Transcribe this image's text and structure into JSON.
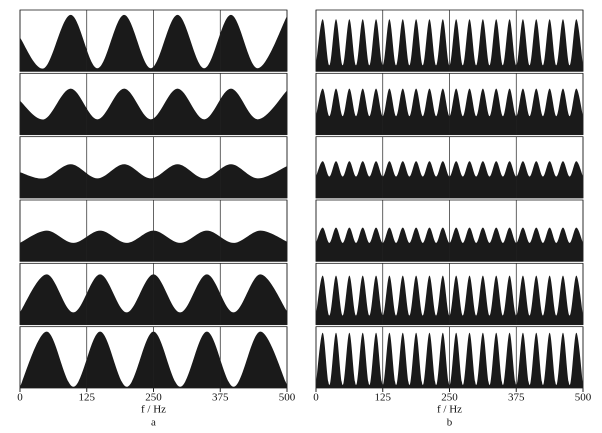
{
  "chart_data": [
    {
      "type": "area",
      "subtitle": "a",
      "xlabel": "f / Hz",
      "color": "#1a1a1a",
      "xlim": [
        0,
        500
      ],
      "xticks": [
        0,
        125,
        250,
        375,
        500
      ],
      "ylim": [
        0,
        1
      ],
      "grid": true,
      "series": [
        {
          "x": [
            0,
            45,
            95,
            145,
            195,
            245,
            295,
            345,
            395,
            445,
            500
          ],
          "values": [
            0.55,
            0.05,
            0.92,
            0.05,
            0.92,
            0.05,
            0.92,
            0.05,
            0.92,
            0.05,
            0.9
          ]
        },
        {
          "x": [
            0,
            45,
            95,
            145,
            195,
            245,
            295,
            345,
            395,
            445,
            500
          ],
          "values": [
            0.55,
            0.25,
            0.75,
            0.25,
            0.75,
            0.25,
            0.75,
            0.25,
            0.75,
            0.25,
            0.72
          ]
        },
        {
          "x": [
            0,
            45,
            95,
            145,
            195,
            245,
            295,
            345,
            395,
            445,
            500
          ],
          "values": [
            0.42,
            0.32,
            0.55,
            0.32,
            0.55,
            0.32,
            0.55,
            0.32,
            0.55,
            0.32,
            0.52
          ]
        },
        {
          "x": [
            0,
            50,
            100,
            150,
            200,
            250,
            300,
            350,
            400,
            450,
            500
          ],
          "values": [
            0.3,
            0.5,
            0.3,
            0.5,
            0.3,
            0.5,
            0.3,
            0.5,
            0.3,
            0.5,
            0.32
          ]
        },
        {
          "x": [
            0,
            50,
            100,
            150,
            200,
            250,
            300,
            350,
            400,
            450,
            500
          ],
          "values": [
            0.2,
            0.82,
            0.2,
            0.82,
            0.2,
            0.82,
            0.2,
            0.82,
            0.2,
            0.82,
            0.22
          ]
        },
        {
          "x": [
            0,
            50,
            100,
            150,
            200,
            250,
            300,
            350,
            400,
            450,
            500
          ],
          "values": [
            0.02,
            0.92,
            0.02,
            0.92,
            0.02,
            0.92,
            0.02,
            0.92,
            0.02,
            0.92,
            0.05
          ]
        }
      ]
    },
    {
      "type": "area",
      "subtitle": "b",
      "xlabel": "f / Hz",
      "color": "#1a1a1a",
      "xlim": [
        0,
        500
      ],
      "xticks": [
        0,
        125,
        250,
        375,
        500
      ],
      "ylim": [
        0,
        1
      ],
      "grid": true,
      "series": [
        {
          "x": [
            0,
            12.5,
            25,
            37.5,
            50,
            62.5,
            75,
            87.5,
            100,
            112.5,
            125,
            137.5,
            150,
            162.5,
            175,
            187.5,
            200,
            212.5,
            225,
            237.5,
            250,
            262.5,
            275,
            287.5,
            300,
            312.5,
            325,
            337.5,
            350,
            362.5,
            375,
            387.5,
            400,
            412.5,
            425,
            437.5,
            450,
            462.5,
            475,
            487.5,
            500
          ],
          "values": [
            0.1,
            0.85,
            0.1,
            0.85,
            0.1,
            0.85,
            0.1,
            0.85,
            0.1,
            0.85,
            0.1,
            0.85,
            0.1,
            0.85,
            0.1,
            0.85,
            0.1,
            0.85,
            0.1,
            0.85,
            0.1,
            0.85,
            0.1,
            0.85,
            0.1,
            0.85,
            0.1,
            0.85,
            0.1,
            0.85,
            0.1,
            0.85,
            0.1,
            0.85,
            0.1,
            0.85,
            0.1,
            0.85,
            0.1,
            0.85,
            0.1
          ]
        },
        {
          "x": [
            0,
            12.5,
            25,
            37.5,
            50,
            62.5,
            75,
            87.5,
            100,
            112.5,
            125,
            137.5,
            150,
            162.5,
            175,
            187.5,
            200,
            212.5,
            225,
            237.5,
            250,
            262.5,
            275,
            287.5,
            300,
            312.5,
            325,
            337.5,
            350,
            362.5,
            375,
            387.5,
            400,
            412.5,
            425,
            437.5,
            450,
            462.5,
            475,
            487.5,
            500
          ],
          "values": [
            0.3,
            0.75,
            0.3,
            0.75,
            0.3,
            0.75,
            0.3,
            0.75,
            0.3,
            0.75,
            0.3,
            0.75,
            0.3,
            0.75,
            0.3,
            0.75,
            0.3,
            0.75,
            0.3,
            0.75,
            0.3,
            0.75,
            0.3,
            0.75,
            0.3,
            0.75,
            0.3,
            0.75,
            0.3,
            0.75,
            0.3,
            0.75,
            0.3,
            0.75,
            0.3,
            0.75,
            0.3,
            0.75,
            0.3,
            0.75,
            0.3
          ]
        },
        {
          "x": [
            0,
            12.5,
            25,
            37.5,
            50,
            62.5,
            75,
            87.5,
            100,
            112.5,
            125,
            137.5,
            150,
            162.5,
            175,
            187.5,
            200,
            212.5,
            225,
            237.5,
            250,
            262.5,
            275,
            287.5,
            300,
            312.5,
            325,
            337.5,
            350,
            362.5,
            375,
            387.5,
            400,
            412.5,
            425,
            437.5,
            450,
            462.5,
            475,
            487.5,
            500
          ],
          "values": [
            0.35,
            0.6,
            0.35,
            0.6,
            0.35,
            0.6,
            0.35,
            0.6,
            0.35,
            0.6,
            0.35,
            0.6,
            0.35,
            0.6,
            0.35,
            0.6,
            0.35,
            0.6,
            0.35,
            0.6,
            0.35,
            0.6,
            0.35,
            0.6,
            0.35,
            0.6,
            0.35,
            0.6,
            0.35,
            0.6,
            0.35,
            0.6,
            0.35,
            0.6,
            0.35,
            0.6,
            0.35,
            0.6,
            0.35,
            0.6,
            0.35
          ]
        },
        {
          "x": [
            0,
            12.5,
            25,
            37.5,
            50,
            62.5,
            75,
            87.5,
            100,
            112.5,
            125,
            137.5,
            150,
            162.5,
            175,
            187.5,
            200,
            212.5,
            225,
            237.5,
            250,
            262.5,
            275,
            287.5,
            300,
            312.5,
            325,
            337.5,
            350,
            362.5,
            375,
            387.5,
            400,
            412.5,
            425,
            437.5,
            450,
            462.5,
            475,
            487.5,
            500
          ],
          "values": [
            0.3,
            0.55,
            0.3,
            0.55,
            0.3,
            0.55,
            0.3,
            0.55,
            0.3,
            0.55,
            0.3,
            0.55,
            0.3,
            0.55,
            0.3,
            0.55,
            0.3,
            0.55,
            0.3,
            0.55,
            0.3,
            0.55,
            0.3,
            0.55,
            0.3,
            0.55,
            0.3,
            0.55,
            0.3,
            0.55,
            0.3,
            0.55,
            0.3,
            0.55,
            0.3,
            0.55,
            0.3,
            0.55,
            0.3,
            0.55,
            0.3
          ]
        },
        {
          "x": [
            0,
            12.5,
            25,
            37.5,
            50,
            62.5,
            75,
            87.5,
            100,
            112.5,
            125,
            137.5,
            150,
            162.5,
            175,
            187.5,
            200,
            212.5,
            225,
            237.5,
            250,
            262.5,
            275,
            287.5,
            300,
            312.5,
            325,
            337.5,
            350,
            362.5,
            375,
            387.5,
            400,
            412.5,
            425,
            437.5,
            450,
            462.5,
            475,
            487.5,
            500
          ],
          "values": [
            0.15,
            0.8,
            0.15,
            0.8,
            0.15,
            0.8,
            0.15,
            0.8,
            0.15,
            0.8,
            0.15,
            0.8,
            0.15,
            0.8,
            0.15,
            0.8,
            0.15,
            0.8,
            0.15,
            0.8,
            0.15,
            0.8,
            0.15,
            0.8,
            0.15,
            0.8,
            0.15,
            0.8,
            0.15,
            0.8,
            0.15,
            0.8,
            0.15,
            0.8,
            0.15,
            0.8,
            0.15,
            0.8,
            0.15,
            0.8,
            0.15
          ]
        },
        {
          "x": [
            0,
            12.5,
            25,
            37.5,
            50,
            62.5,
            75,
            87.5,
            100,
            112.5,
            125,
            137.5,
            150,
            162.5,
            175,
            187.5,
            200,
            212.5,
            225,
            237.5,
            250,
            262.5,
            275,
            287.5,
            300,
            312.5,
            325,
            337.5,
            350,
            362.5,
            375,
            387.5,
            400,
            412.5,
            425,
            437.5,
            450,
            462.5,
            475,
            487.5,
            500
          ],
          "values": [
            0.05,
            0.9,
            0.05,
            0.9,
            0.05,
            0.9,
            0.05,
            0.9,
            0.05,
            0.9,
            0.05,
            0.9,
            0.05,
            0.9,
            0.05,
            0.9,
            0.05,
            0.9,
            0.05,
            0.9,
            0.05,
            0.9,
            0.05,
            0.9,
            0.05,
            0.9,
            0.05,
            0.9,
            0.05,
            0.9,
            0.05,
            0.9,
            0.05,
            0.9,
            0.05,
            0.9,
            0.05,
            0.9,
            0.05,
            0.9,
            0.05
          ]
        }
      ]
    }
  ]
}
